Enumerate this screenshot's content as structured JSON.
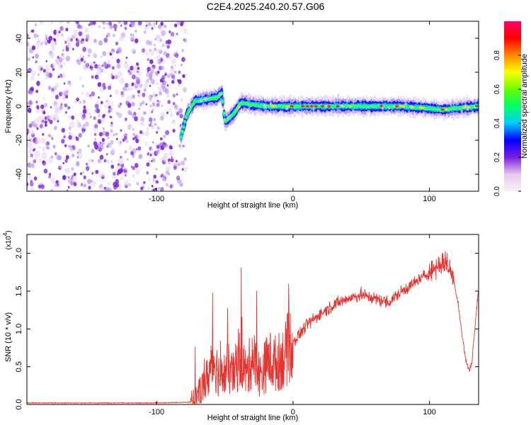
{
  "title": "C2E4.2025.240.20.57.G06",
  "colors": {
    "axis": "#000000",
    "snr_line": "#e8322e",
    "spectrogram_noise": "#7a1fe0",
    "colorbar_stops": [
      "#f8f0f8",
      "#e8c8f0",
      "#7a1fe0",
      "#0000ff",
      "#00ccff",
      "#00ff66",
      "#66ff00",
      "#ffff00",
      "#ff8800",
      "#ff0000",
      "#ff0066"
    ]
  },
  "chart_data": [
    {
      "type": "heatmap",
      "name": "spectrogram",
      "xlabel": "Height of straight line (km)",
      "ylabel": "Frequency (Hz)",
      "xlim": [
        -195,
        136
      ],
      "ylim": [
        -50,
        50
      ],
      "xticks": [
        -100,
        0,
        100
      ],
      "xtick_labels": [
        "-100",
        "0",
        "100"
      ],
      "yticks": [
        -40,
        -20,
        0,
        20,
        40
      ],
      "ytick_labels": [
        "-40",
        "-20",
        "0",
        "20",
        "40"
      ],
      "noise_region_x": [
        -195,
        -80
      ],
      "signal_track": [
        {
          "x": -82,
          "y": -18
        },
        {
          "x": -78,
          "y": -5
        },
        {
          "x": -72,
          "y": 3
        },
        {
          "x": -64,
          "y": 4
        },
        {
          "x": -56,
          "y": 5
        },
        {
          "x": -52,
          "y": 8
        },
        {
          "x": -50,
          "y": -9
        },
        {
          "x": -44,
          "y": -5
        },
        {
          "x": -38,
          "y": 2
        },
        {
          "x": -30,
          "y": 1
        },
        {
          "x": -20,
          "y": 0
        },
        {
          "x": 0,
          "y": 0
        },
        {
          "x": 40,
          "y": 0
        },
        {
          "x": 80,
          "y": 0
        },
        {
          "x": 110,
          "y": -2
        },
        {
          "x": 136,
          "y": 0
        }
      ],
      "colorbar": {
        "label": "Normalized spectral amplitude",
        "range": [
          0,
          1
        ],
        "ticks": [
          0.0,
          0.2,
          0.4,
          0.6,
          0.8
        ],
        "tick_labels": [
          "0.0",
          "0.2",
          "0.4",
          "0.6",
          "0.8"
        ]
      }
    },
    {
      "type": "line",
      "name": "snr",
      "xlabel": "Height of straight line (km)",
      "ylabel": "SNR (10 * v/v)",
      "scale_label": "(x10",
      "scale_exponent": "4",
      "xlim": [
        -195,
        136
      ],
      "ylim": [
        0,
        2.25
      ],
      "xticks": [
        -100,
        0,
        100
      ],
      "xtick_labels": [
        "-100",
        "0",
        "100"
      ],
      "yticks": [
        0.0,
        0.5,
        1.0,
        1.5,
        2.0
      ],
      "ytick_labels": [
        "0.0",
        "0.5",
        "1.0",
        "1.5",
        "2.0"
      ],
      "series": [
        {
          "name": "SNR",
          "points": [
            {
              "x": -195,
              "y": 0.02
            },
            {
              "x": -150,
              "y": 0.02
            },
            {
              "x": -100,
              "y": 0.02
            },
            {
              "x": -75,
              "y": 0.03
            },
            {
              "x": -70,
              "y": 0.1
            },
            {
              "x": -65,
              "y": 0.25
            },
            {
              "x": -62,
              "y": 0.35
            },
            {
              "x": -58,
              "y": 0.55
            },
            {
              "x": -55,
              "y": 0.4
            },
            {
              "x": -52,
              "y": 0.3
            },
            {
              "x": -48,
              "y": 0.45
            },
            {
              "x": -44,
              "y": 0.35
            },
            {
              "x": -38,
              "y": 0.6
            },
            {
              "x": -34,
              "y": 0.35
            },
            {
              "x": -30,
              "y": 0.6
            },
            {
              "x": -24,
              "y": 0.35
            },
            {
              "x": -18,
              "y": 0.55
            },
            {
              "x": -12,
              "y": 0.5
            },
            {
              "x": -6,
              "y": 0.6
            },
            {
              "x": 0,
              "y": 0.82
            },
            {
              "x": 10,
              "y": 1.05
            },
            {
              "x": 20,
              "y": 1.2
            },
            {
              "x": 30,
              "y": 1.32
            },
            {
              "x": 40,
              "y": 1.4
            },
            {
              "x": 50,
              "y": 1.45
            },
            {
              "x": 60,
              "y": 1.4
            },
            {
              "x": 70,
              "y": 1.35
            },
            {
              "x": 80,
              "y": 1.5
            },
            {
              "x": 90,
              "y": 1.62
            },
            {
              "x": 100,
              "y": 1.75
            },
            {
              "x": 107,
              "y": 1.85
            },
            {
              "x": 112,
              "y": 1.88
            },
            {
              "x": 117,
              "y": 1.7
            },
            {
              "x": 121,
              "y": 1.35
            },
            {
              "x": 124,
              "y": 0.9
            },
            {
              "x": 127,
              "y": 0.55
            },
            {
              "x": 129,
              "y": 0.45
            },
            {
              "x": 131,
              "y": 0.55
            },
            {
              "x": 133,
              "y": 0.95
            },
            {
              "x": 135,
              "y": 1.35
            },
            {
              "x": 136,
              "y": 1.55
            }
          ]
        }
      ]
    }
  ]
}
